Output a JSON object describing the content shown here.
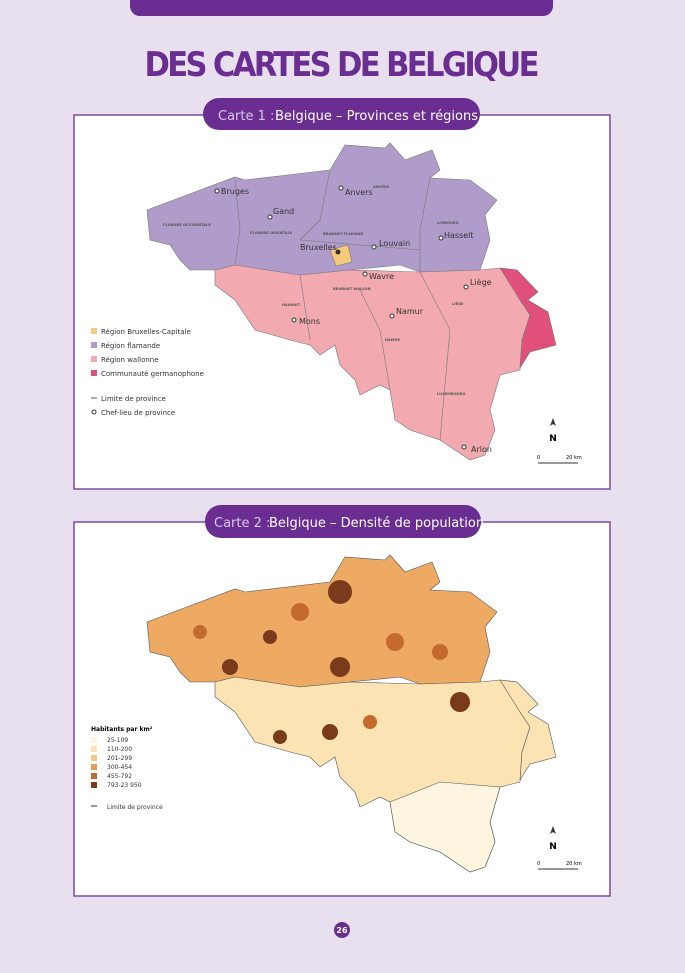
{
  "header": {
    "title": "DES CARTES DE BELGIQUE"
  },
  "map1": {
    "label": "Carte 1 :",
    "title": "Belgique – Provinces et régions",
    "cities": [
      "Bruges",
      "Gand",
      "Anvers",
      "Bruxelles",
      "Louvain",
      "Hasselt",
      "Wavre",
      "Liège",
      "Mons",
      "Namur",
      "Arlon"
    ],
    "provinces": [
      "FLANDRE OCCIDENTALE",
      "FLANDRE ORIENTALE",
      "ANVERS",
      "LIMBOURG",
      "BRABANT FLAMAND",
      "BRABANT WALLON",
      "HAINAUT",
      "NAMUR",
      "LIÈGE",
      "LUXEMBOURG"
    ],
    "legend": [
      "Région Bruxelles-Capitale",
      "Région flamande",
      "Région wallonne",
      "Communauté germanophone",
      "Limite de province",
      "Chef-lieu de province"
    ],
    "scale": {
      "north": "N",
      "start": "0",
      "end": "20 km"
    }
  },
  "map2": {
    "label": "Carte 2 :",
    "title": "Belgique – Densité de population",
    "legend_title": "Habitants par km²",
    "legend": [
      "25-109",
      "110-200",
      "201-299",
      "300-454",
      "455-792",
      "793-23 950",
      "Limite de province"
    ],
    "scale": {
      "north": "N",
      "start": "0",
      "end": "20 km"
    }
  },
  "page_number": "26"
}
